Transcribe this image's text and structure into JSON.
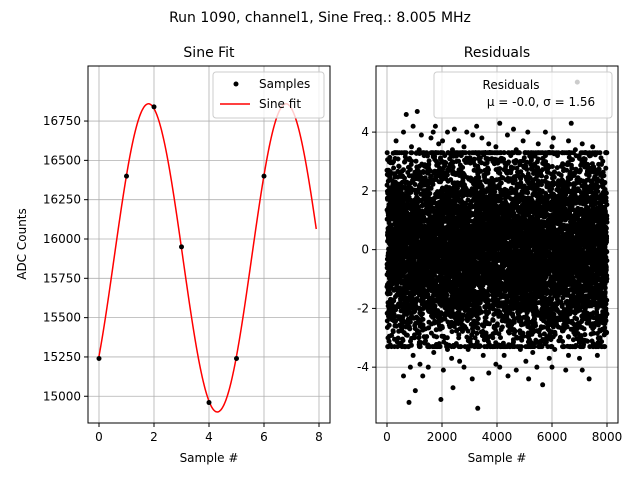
{
  "figure": {
    "suptitle": "Run 1090, channel1, Sine Freq.: 8.005 MHz"
  },
  "chart_data": [
    {
      "type": "line",
      "title": "Sine Fit",
      "xlabel": "Sample #",
      "ylabel": "ADC Counts",
      "xlim": [
        -0.4,
        8.4
      ],
      "ylim": [
        14830,
        17100
      ],
      "xticks": [
        0,
        2,
        4,
        6,
        8
      ],
      "yticks": [
        15000,
        15250,
        15500,
        15750,
        16000,
        16250,
        16500,
        16750
      ],
      "grid": true,
      "legend_position": "upper-right",
      "series": [
        {
          "name": "Samples",
          "style": "markers",
          "color": "#000000",
          "x": [
            0,
            1,
            2,
            3,
            4,
            5,
            6
          ],
          "y": [
            15240,
            16400,
            16840,
            15950,
            14960,
            15240,
            16400
          ]
        },
        {
          "name": "Sine fit",
          "style": "line",
          "color": "#ff0000",
          "model": {
            "offset": 15880,
            "amplitude": 980,
            "period": 5,
            "peak_at": 1.8,
            "x_start": 0,
            "x_end": 7.9
          }
        }
      ]
    },
    {
      "type": "scatter",
      "title": "Residuals",
      "xlabel": "Sample #",
      "ylabel": "",
      "xlim": [
        -400,
        8400
      ],
      "ylim": [
        -5.9,
        6.25
      ],
      "xticks": [
        0,
        2000,
        4000,
        6000,
        8000
      ],
      "yticks": [
        -4,
        -2,
        0,
        2,
        4
      ],
      "grid": true,
      "legend_position": "upper-right",
      "legend_label": "Residuals",
      "legend_stats": "μ = -0.0, σ = 1.56",
      "stats": {
        "mean": -0.0,
        "std": 1.56
      },
      "n_points": 8000,
      "color": "#000000",
      "outliers": [
        [
          330,
          3.7
        ],
        [
          570,
          2.5
        ],
        [
          600,
          4.0
        ],
        [
          650,
          3.0
        ],
        [
          700,
          4.6
        ],
        [
          780,
          2.8
        ],
        [
          820,
          3.1
        ],
        [
          890,
          3.5
        ],
        [
          950,
          4.2
        ],
        [
          1020,
          2.6
        ],
        [
          1100,
          4.7
        ],
        [
          1170,
          3.4
        ],
        [
          1250,
          3.9
        ],
        [
          1350,
          3.2
        ],
        [
          1520,
          2.9
        ],
        [
          1600,
          3.8
        ],
        [
          1680,
          4.0
        ],
        [
          1760,
          4.2
        ],
        [
          1800,
          3.0
        ],
        [
          1880,
          3.6
        ],
        [
          1960,
          3.3
        ],
        [
          2020,
          3.7
        ],
        [
          2100,
          3.2
        ],
        [
          2200,
          4.0
        ],
        [
          2300,
          2.9
        ],
        [
          2380,
          3.4
        ],
        [
          2450,
          4.1
        ],
        [
          2520,
          3.0
        ],
        [
          2600,
          3.7
        ],
        [
          2700,
          3.2
        ],
        [
          2800,
          3.5
        ],
        [
          2900,
          4.0
        ],
        [
          3000,
          3.1
        ],
        [
          3120,
          3.9
        ],
        [
          3260,
          4.2
        ],
        [
          3450,
          3.8
        ],
        [
          3600,
          3.1
        ],
        [
          3700,
          3.6
        ],
        [
          3850,
          3.0
        ],
        [
          3960,
          3.5
        ],
        [
          4100,
          4.3
        ],
        [
          4180,
          3.1
        ],
        [
          4260,
          3.3
        ],
        [
          4380,
          3.9
        ],
        [
          4500,
          3.2
        ],
        [
          4600,
          4.1
        ],
        [
          4700,
          3.4
        ],
        [
          4850,
          3.0
        ],
        [
          4950,
          3.7
        ],
        [
          5120,
          4.0
        ],
        [
          5250,
          3.1
        ],
        [
          5500,
          3.6
        ],
        [
          5660,
          3.1
        ],
        [
          5760,
          4.0
        ],
        [
          5880,
          3.3
        ],
        [
          6000,
          3.5
        ],
        [
          6050,
          3.8
        ],
        [
          6200,
          3.2
        ],
        [
          6400,
          2.9
        ],
        [
          6600,
          3.7
        ],
        [
          6700,
          4.3
        ],
        [
          6850,
          3.4
        ],
        [
          6920,
          5.7
        ],
        [
          7000,
          3.1
        ],
        [
          7100,
          3.6
        ],
        [
          7250,
          2.8
        ],
        [
          7400,
          3.2
        ],
        [
          7480,
          3.5
        ],
        [
          7600,
          2.7
        ],
        [
          7800,
          2.9
        ],
        [
          7950,
          3.3
        ],
        [
          480,
          -3.2
        ],
        [
          600,
          -4.3
        ],
        [
          700,
          -2.9
        ],
        [
          800,
          -5.2
        ],
        [
          850,
          -4.0
        ],
        [
          950,
          -3.6
        ],
        [
          1000,
          -3.0
        ],
        [
          1030,
          -4.8
        ],
        [
          1150,
          -2.8
        ],
        [
          1200,
          -3.9
        ],
        [
          1300,
          -4.3
        ],
        [
          1400,
          -3.1
        ],
        [
          1500,
          -4.0
        ],
        [
          1700,
          -3.5
        ],
        [
          1900,
          -3.2
        ],
        [
          1960,
          -5.1
        ],
        [
          2050,
          -4.1
        ],
        [
          2100,
          -3.0
        ],
        [
          2200,
          -3.4
        ],
        [
          2350,
          -3.7
        ],
        [
          2400,
          -4.7
        ],
        [
          2520,
          -3.2
        ],
        [
          2640,
          -3.8
        ],
        [
          2800,
          -4.0
        ],
        [
          2950,
          -3.4
        ],
        [
          3100,
          -4.4
        ],
        [
          3300,
          -5.4
        ],
        [
          3500,
          -3.6
        ],
        [
          3700,
          -4.2
        ],
        [
          3850,
          -3.0
        ],
        [
          3960,
          -3.9
        ],
        [
          4100,
          -4.0
        ],
        [
          4260,
          -3.6
        ],
        [
          4400,
          -4.3
        ],
        [
          4700,
          -4.1
        ],
        [
          4850,
          -3.4
        ],
        [
          5050,
          -3.8
        ],
        [
          5150,
          -4.4
        ],
        [
          5300,
          -3.5
        ],
        [
          5450,
          -4.0
        ],
        [
          5660,
          -4.6
        ],
        [
          5750,
          -3.2
        ],
        [
          5900,
          -3.7
        ],
        [
          6000,
          -4.0
        ],
        [
          6100,
          -3.4
        ],
        [
          6250,
          -3.1
        ],
        [
          6500,
          -4.1
        ],
        [
          6600,
          -3.6
        ],
        [
          6850,
          -3.3
        ],
        [
          7000,
          -3.7
        ],
        [
          7100,
          -4.1
        ],
        [
          7250,
          -3.1
        ],
        [
          7350,
          -4.4
        ],
        [
          7500,
          -3.2
        ],
        [
          7650,
          -3.6
        ],
        [
          7750,
          -3.0
        ],
        [
          7900,
          -2.9
        ]
      ]
    }
  ]
}
